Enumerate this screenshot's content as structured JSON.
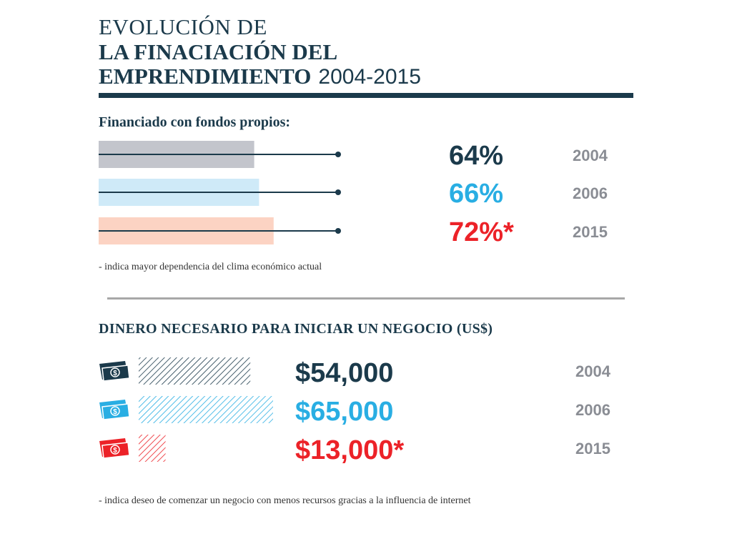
{
  "header": {
    "line1": "EVOLUCIÓN DE",
    "line2": "LA FINACIACIÓN DEL",
    "line3": "EMPRENDIMIENTO",
    "years": "2004-2015"
  },
  "chart_data": [
    {
      "type": "bar",
      "title": "Financiado con fondos propios:",
      "categories": [
        "2004",
        "2006",
        "2015"
      ],
      "values": [
        64,
        66,
        72
      ],
      "labels": [
        "64%",
        "66%",
        "72%*"
      ],
      "colors": [
        "#1b3a4b",
        "#29aee3",
        "#ec2228"
      ],
      "bar_colors": [
        "#c3c5cc",
        "#cfeaf8",
        "#fcd3c3"
      ],
      "note": "- indica mayor dependencia del clima económico actual"
    },
    {
      "type": "bar",
      "title": "DINERO NECESARIO PARA INICIAR UN NEGOCIO  (US$)",
      "categories": [
        "2004",
        "2006",
        "2015"
      ],
      "values": [
        54000,
        65000,
        13000
      ],
      "labels": [
        "$54,000",
        "$65,000",
        "$13,000*"
      ],
      "colors": [
        "#1b3a4b",
        "#29aee3",
        "#ec2228"
      ],
      "note": "- indica deseo de comenzar un negocio con menos recursos gracias a la influencia de internet"
    }
  ]
}
